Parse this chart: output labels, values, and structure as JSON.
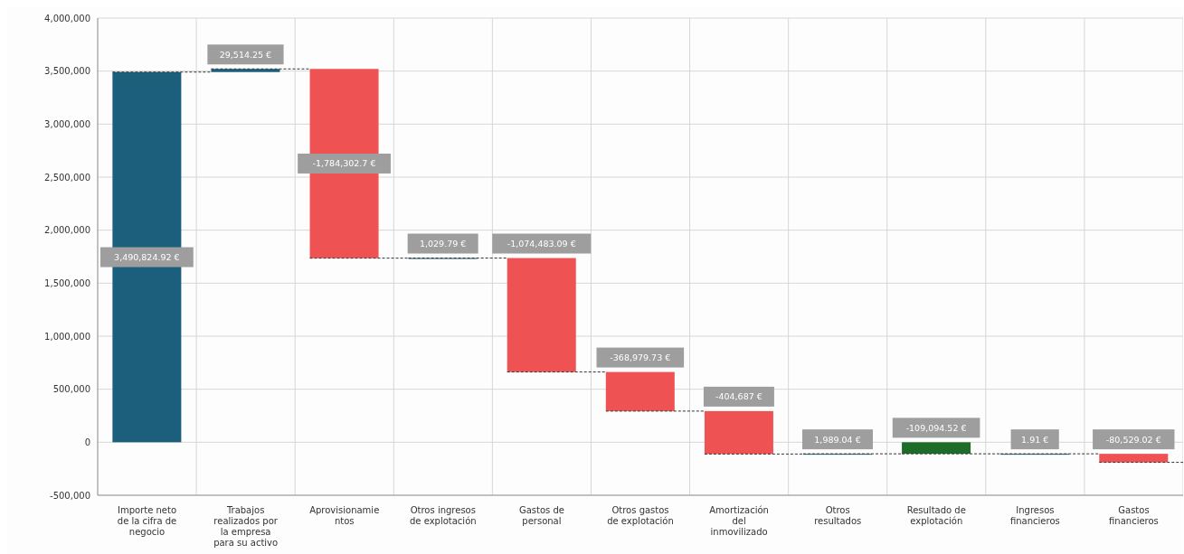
{
  "chart_data": {
    "type": "bar",
    "categories": [
      "Importe neto de la cifra de negocio",
      "Trabajos realizados por la empresa para su activo",
      "Aprovisionamientos",
      "Otros ingresos de explotación",
      "Gastos de personal",
      "Otros gastos de explotación",
      "Amortización del inmovilizado",
      "Otros resultados",
      "Resultado de explotación",
      "Ingresos financieros",
      "Gastos financieros"
    ],
    "values": [
      3490824.92,
      29514.25,
      -1784302.7,
      1029.79,
      -1074483.09,
      -368979.73,
      -404687,
      1989.04,
      -109094.52,
      1.91,
      -80529.02
    ],
    "base": [
      0,
      3490824.92,
      3520339.17,
      1736036.47,
      1737066.26,
      662583.17,
      293603.44,
      -111083.56,
      0,
      -109094.52,
      -109092.61
    ],
    "colors": [
      "#1b5f7c",
      "#1b5f7c",
      "#ee5253",
      "#1b5f7c",
      "#ee5253",
      "#ee5253",
      "#ee5253",
      "#1b5f7c",
      "#1e6b2a",
      "#1b5f7c",
      "#ee5253"
    ],
    "value_labels": [
      "3,490,824.92 €",
      "29,514.25 €",
      "-1,784,302.7 €",
      "1,029.79 €",
      "-1,074,483.09 €",
      "-368,979.73 €",
      "-404,687 €",
      "1,989.04 €",
      "-109,094.52 €",
      "1.91 €",
      "-80,529.02 €"
    ],
    "ylim": [
      -500000,
      4000000
    ],
    "yticks": [
      {
        "value": -500000,
        "label": "-500,000"
      },
      0,
      {
        "value": 500000,
        "label": "500,000"
      },
      {
        "value": 1000000,
        "label": "1,000,000"
      },
      {
        "value": 1500000,
        "label": "1,500,000"
      },
      {
        "value": 2000000,
        "label": "2,000,000"
      },
      {
        "value": 2500000,
        "label": "2,500,000"
      },
      {
        "value": 3000000,
        "label": "3,000,000"
      },
      {
        "value": 3500000,
        "label": "3,500,000"
      },
      {
        "value": 4000000,
        "label": "4,000,000"
      }
    ],
    "grid": true
  }
}
